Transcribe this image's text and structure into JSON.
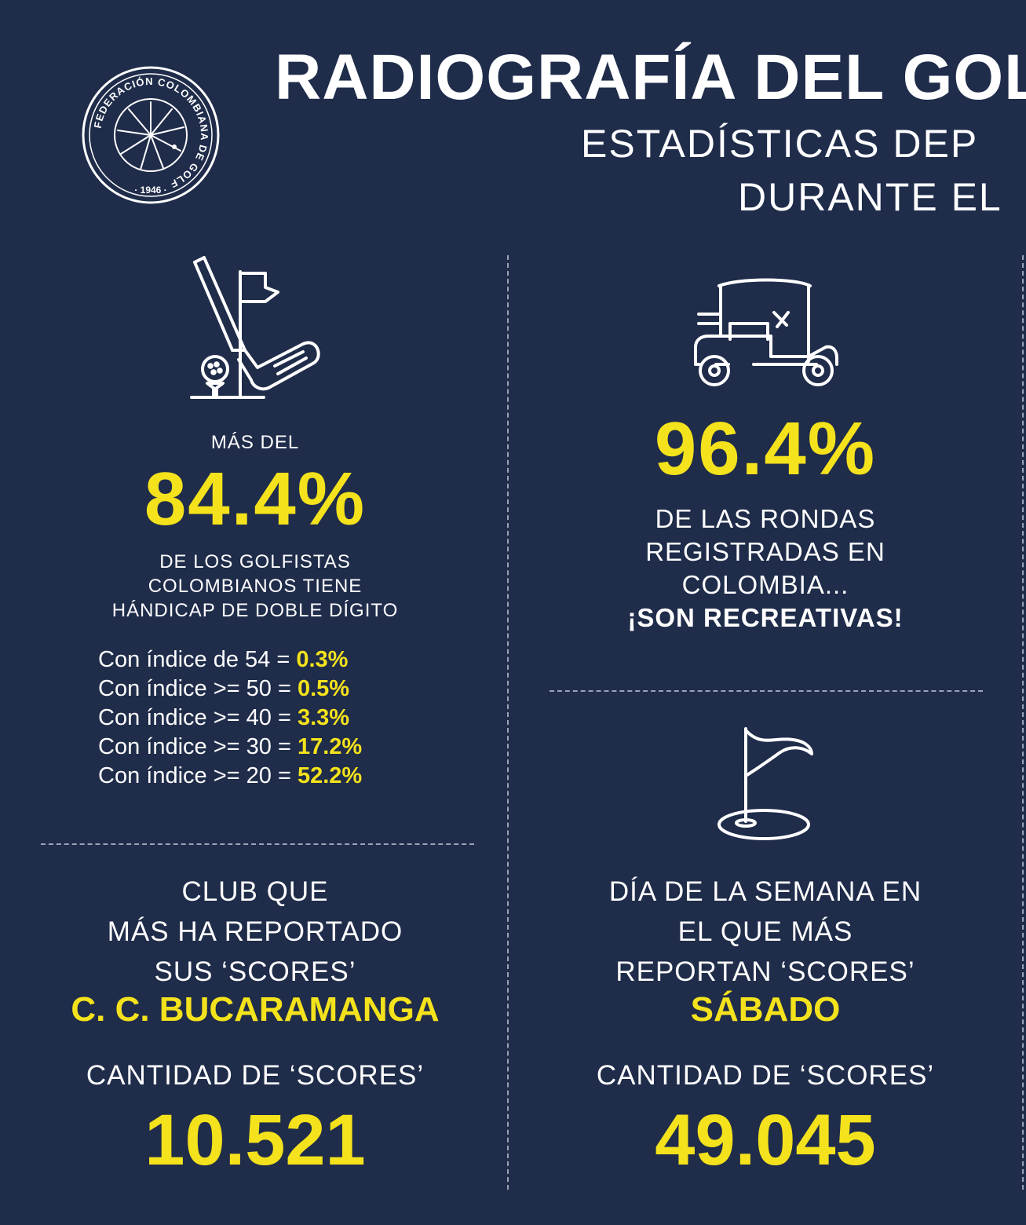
{
  "header": {
    "logo": {
      "ring_text": "FEDERACIÓN COLOMBIANA DE GOLF",
      "year": "· 1946 ·"
    },
    "title": "RADIOGRAFÍA DEL GOL",
    "subtitle_line1": "ESTADÍSTICAS DEP",
    "subtitle_line2": "DURANTE EL"
  },
  "handicap_panel": {
    "icon": "golf-club-ball-flag-icon",
    "pre_label": "MÁS DEL",
    "percent": "84.4%",
    "desc_lines": [
      "DE LOS GOLFISTAS",
      "COLOMBIANOS TIENE",
      "HÁNDICAP DE DOBLE DÍGITO"
    ],
    "index_rows": [
      {
        "label": "Con índice de 54 = ",
        "value": "0.3%"
      },
      {
        "label": "Con índice >= 50 = ",
        "value": "0.5%"
      },
      {
        "label": "Con índice >= 40 = ",
        "value": "3.3%"
      },
      {
        "label": "Con índice >= 30 = ",
        "value": "17.2%"
      },
      {
        "label": "Con índice >= 20 = ",
        "value": "52.2%"
      }
    ]
  },
  "rounds_panel": {
    "icon": "golf-cart-icon",
    "percent": "96.4%",
    "desc_lines": [
      "DE LAS RONDAS",
      "REGISTRADAS EN",
      "COLOMBIA..."
    ],
    "highlight": "¡SON RECREATIVAS!"
  },
  "club_panel": {
    "lines": [
      "CLUB QUE",
      "MÁS HA REPORTADO",
      "SUS ‘SCORES’"
    ],
    "club": "C. C. BUCARAMANGA",
    "count_label": "CANTIDAD DE ‘SCORES’",
    "count": "10.521"
  },
  "day_panel": {
    "icon": "golf-hole-flag-icon",
    "lines": [
      "DÍA DE LA SEMANA EN",
      "EL QUE MÁS",
      "REPORTAN ‘SCORES’"
    ],
    "day": "SÁBADO",
    "count_label": "CANTIDAD DE ‘SCORES’",
    "count": "49.045"
  },
  "colors": {
    "background": "#1f2c4a",
    "accent": "#f4e21c",
    "text": "#ffffff"
  }
}
